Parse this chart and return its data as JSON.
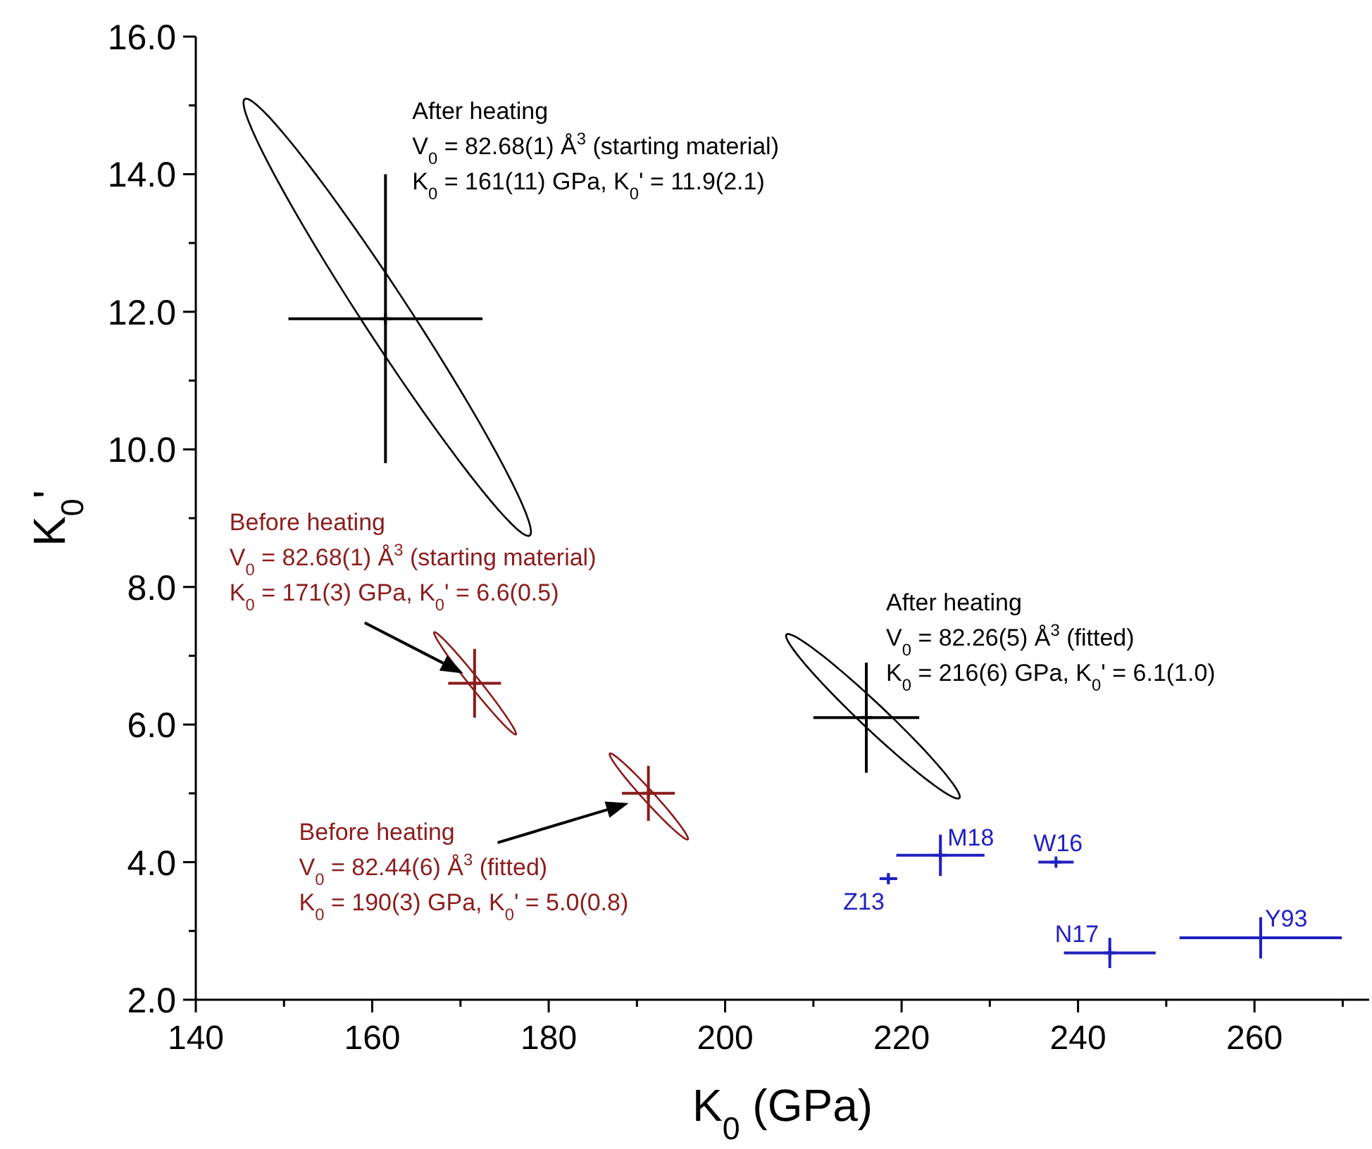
{
  "chart_data": {
    "type": "scatter",
    "xlabel": "K$_{0}$ (GPa)",
    "ylabel": "K$_{0}$'",
    "xlim": [
      140,
      273
    ],
    "ylim": [
      2,
      16
    ],
    "xticks": [
      140,
      {
        "value": 150,
        "label": null
      },
      160,
      {
        "value": 170,
        "label": null
      },
      180,
      {
        "value": 190,
        "label": null
      },
      200,
      {
        "value": 210,
        "label": null
      },
      220,
      {
        "value": 230,
        "label": null
      },
      240,
      {
        "value": 250,
        "label": null
      },
      260,
      {
        "value": 270,
        "label": null
      }
    ],
    "yticks": [
      {
        "value": 2,
        "label": "2.0"
      },
      {
        "value": 3,
        "label": null
      },
      {
        "value": 4,
        "label": "4.0"
      },
      {
        "value": 5,
        "label": null
      },
      {
        "value": 6,
        "label": "6.0"
      },
      {
        "value": 7,
        "label": null
      },
      {
        "value": 8,
        "label": "8.0"
      },
      {
        "value": 9,
        "label": null
      },
      {
        "value": 10,
        "label": "10.0"
      },
      {
        "value": 11,
        "label": null
      },
      {
        "value": 12,
        "label": "12.0"
      },
      {
        "value": 13,
        "label": null
      },
      {
        "value": 14,
        "label": "14.0"
      },
      {
        "value": 15,
        "label": null
      },
      {
        "value": 16,
        "label": "16.0"
      }
    ],
    "grid": false,
    "legend": false,
    "marker": "cross",
    "series": [
      {
        "color": "#000000",
        "x": [
          161.5,
          216
        ],
        "values": [
          11.9,
          6.1
        ],
        "xerrors": [
          11,
          6
        ],
        "errors": [
          2.1,
          0.8
        ]
      },
      {
        "color": "#8b1c1c",
        "x": [
          171.6,
          191.3
        ],
        "values": [
          6.6,
          5.0
        ],
        "xerrors": [
          3,
          3
        ],
        "errors": [
          0.5,
          0.4
        ]
      },
      {
        "name": "M18",
        "color": "#2020c0",
        "x": [
          224.4
        ],
        "values": [
          4.1
        ],
        "xerrors": [
          5
        ],
        "errors": [
          0.3
        ]
      },
      {
        "name": "W16",
        "color": "#2020c0",
        "x": [
          237.5
        ],
        "values": [
          4.0
        ],
        "xerrors": [
          2
        ],
        "errors": [
          null
        ]
      },
      {
        "name": "Z13",
        "color": "#2020c0",
        "x": [
          218.5
        ],
        "values": [
          3.76
        ],
        "xerrors": [
          1
        ],
        "errors": [
          0.05
        ]
      },
      {
        "name": "N17",
        "color": "#2020c0",
        "x": [
          243.6
        ],
        "values": [
          2.68
        ],
        "xerrors": [
          5.2
        ],
        "errors": [
          0.22
        ]
      },
      {
        "name": "Y93",
        "color": "#2020c0",
        "x": [
          260.7
        ],
        "values": [
          2.9
        ],
        "xerrors": [
          9.2
        ],
        "errors": [
          0.3
        ]
      }
    ],
    "annotations": [
      "After heating",
      "V$_{0}$ = 82.68(1) Å$^{3}$ (starting material)",
      "K$_{0}$ = 161(11) GPa, K$_{0}$' = 11.9(2.1)",
      "After heating",
      "V$_{0}$ = 82.26(5) Å$^{3}$ (fitted)",
      "K$_{0}$ = 216(6) GPa, K$_{0}$' = 6.1(1.0)",
      "Before heating",
      "V$_{0}$ = 82.68(1) Å$^{3}$ (starting material)",
      "K$_{0}$ = 171(3) GPa, K$_{0}$' = 6.6(0.5)",
      "Before heating",
      "V$_{0}$ = 82.44(6) Å$^{3}$ (fitted)",
      "K$_{0}$ = 190(3) GPa, K$_{0}$' = 5.0(0.8)"
    ]
  }
}
